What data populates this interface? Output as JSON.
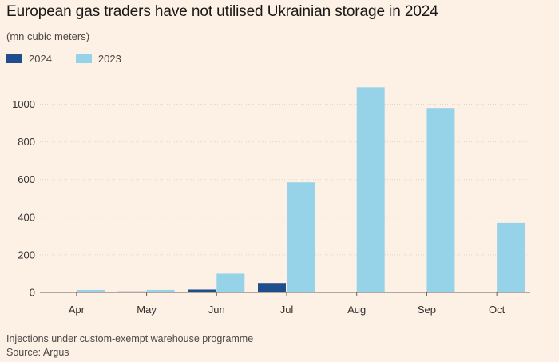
{
  "title": "European gas traders have not utilised Ukrainian storage in 2024",
  "subtitle": "(mn cubic meters)",
  "footnote": "Injections under custom-exempt warehouse programme",
  "source": "Source: Argus",
  "colors": {
    "background": "#fdf1e6",
    "series_2024": "#1f4e8c",
    "series_2023": "#96d2e8",
    "grid": "#e3d5c8",
    "axis": "#66605c",
    "text": "#33302e"
  },
  "chart_data": {
    "type": "bar",
    "categories": [
      "Apr",
      "May",
      "Jun",
      "Jul",
      "Aug",
      "Sep",
      "Oct"
    ],
    "series": [
      {
        "name": "2024",
        "values": [
          3,
          5,
          15,
          50,
          0,
          0,
          0
        ]
      },
      {
        "name": "2023",
        "values": [
          13,
          13,
          100,
          585,
          1090,
          980,
          370
        ]
      }
    ],
    "y_ticks": [
      0,
      200,
      400,
      600,
      800,
      1000
    ],
    "ylim": [
      0,
      1100
    ],
    "grid": true,
    "legend_position": "top-left"
  }
}
